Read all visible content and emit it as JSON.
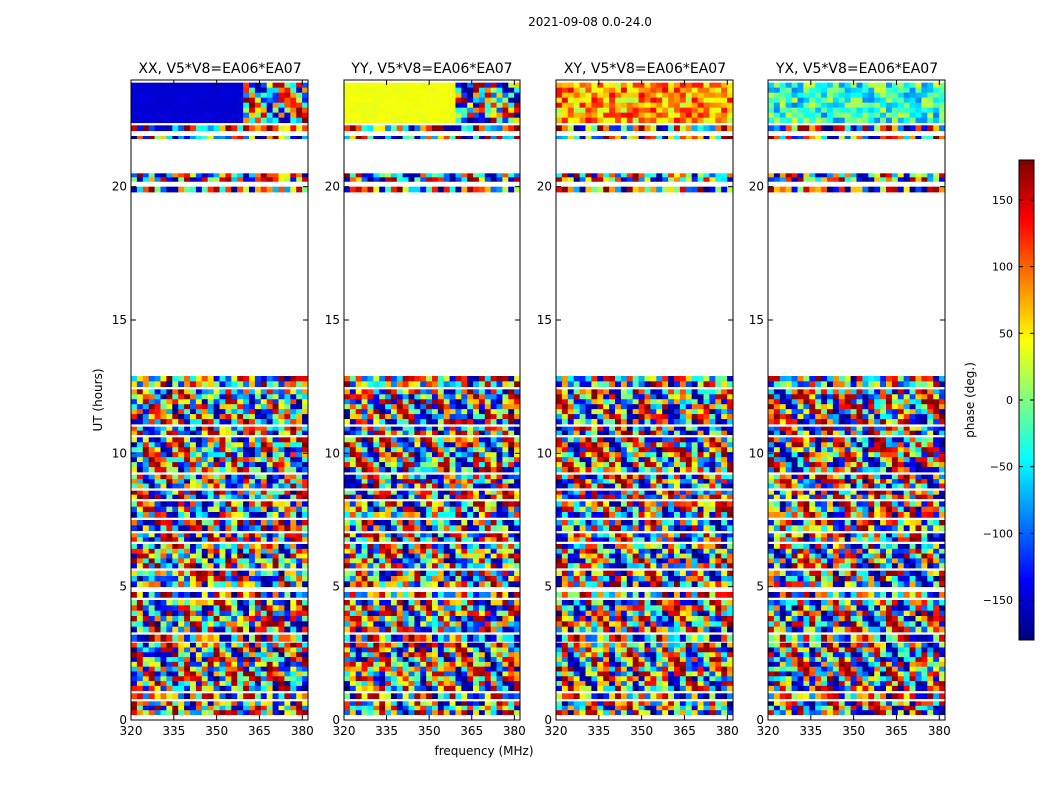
{
  "chart_data": {
    "type": "heatmap",
    "suptitle": "2021-09-08 0.0-24.0",
    "xlabel": "frequency (MHz)",
    "ylabel": "UT (hours)",
    "xlim": [
      320,
      382
    ],
    "ylim": [
      0,
      24
    ],
    "xticks": [
      320,
      335,
      350,
      365,
      380
    ],
    "yticks": [
      0,
      5,
      10,
      15,
      20
    ],
    "panels": [
      {
        "title": "XX, V5*V8=EA06*EA07",
        "pol": "XX",
        "band_phase_deg": -150
      },
      {
        "title": "YY, V5*V8=EA06*EA07",
        "pol": "YY",
        "band_phase_deg": 40
      },
      {
        "title": "XY, V5*V8=EA06*EA07",
        "pol": "XY",
        "band_phase_deg": 100
      },
      {
        "title": "YX, V5*V8=EA06*EA07",
        "pol": "YX",
        "band_phase_deg": -40
      }
    ],
    "colorbar": {
      "label": "phase (deg.)",
      "range": [
        -180,
        180
      ],
      "ticks": [
        150,
        100,
        50,
        0,
        -50,
        -100,
        -150
      ],
      "tick_labels": [
        "150",
        "100",
        "50",
        "0",
        "−50",
        "−100",
        "−150"
      ],
      "colormap": "jet"
    },
    "data_intervals_ut_hours": [
      [
        0.2,
        0.7
      ],
      [
        0.8,
        1.0
      ],
      [
        1.1,
        2.9
      ],
      [
        2.95,
        3.2
      ],
      [
        3.3,
        4.5
      ],
      [
        4.6,
        4.8
      ],
      [
        5.0,
        5.6
      ],
      [
        5.7,
        6.6
      ],
      [
        6.7,
        7.0
      ],
      [
        7.1,
        7.5
      ],
      [
        7.6,
        8.2
      ],
      [
        8.3,
        8.6
      ],
      [
        8.7,
        9.2
      ],
      [
        9.3,
        10.6
      ],
      [
        10.7,
        11.0
      ],
      [
        11.1,
        12.4
      ],
      [
        12.5,
        12.9
      ],
      [
        19.8,
        20.0
      ],
      [
        20.2,
        20.5
      ],
      [
        21.8,
        21.9
      ],
      [
        22.1,
        22.3
      ],
      [
        22.4,
        23.9
      ]
    ]
  }
}
